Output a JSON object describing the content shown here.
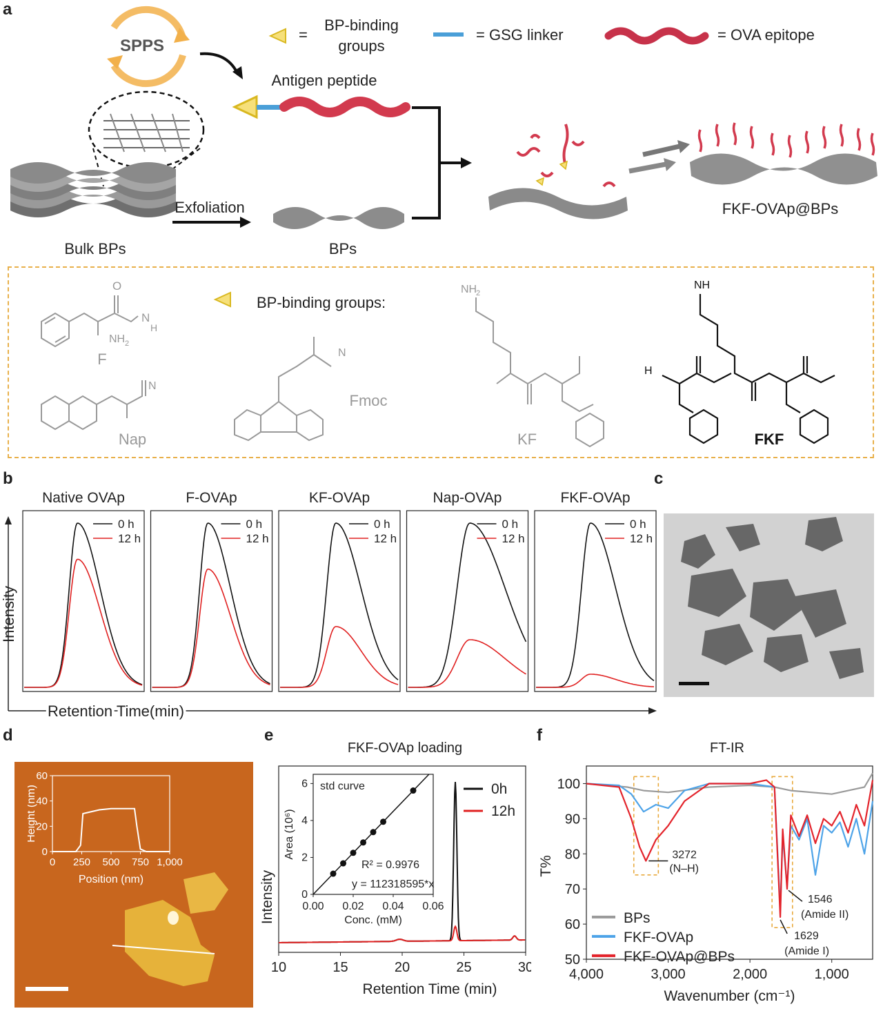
{
  "panel_letters": {
    "a": "a",
    "b": "b",
    "c": "c",
    "d": "d",
    "e": "e",
    "f": "f"
  },
  "panel_a": {
    "spps": "SPPS",
    "legend_eq": "=",
    "legend_bp_line1": "BP-binding",
    "legend_bp_line2": "groups",
    "legend_gsg": "= GSG linker",
    "legend_ova": "= OVA epitope",
    "antigen_peptide": "Antigen peptide",
    "exfoliation": "Exfoliation",
    "bulk_bps": "Bulk BPs",
    "bps": "BPs",
    "product": "FKF-OVAp@BPs",
    "colors": {
      "peptide": "#d23a4e",
      "linker": "#4a9fd8",
      "triangle": "#f2d43a",
      "sheet": "#8c8c8c",
      "box": "#e8b04a"
    }
  },
  "structures": {
    "heading": "BP-binding groups:",
    "F": "F",
    "Nap": "Nap",
    "Fmoc": "Fmoc",
    "KF": "KF",
    "FKF": "FKF",
    "atoms": {
      "O": "O",
      "NH2": "NH",
      "sub2": "2",
      "N": "N",
      "H": "H",
      "H2N": "H",
      "N_sub": "N"
    }
  },
  "panel_b": {
    "y_label": "Intensity",
    "x_label": "Retention Time(min)",
    "legend": [
      "0 h",
      "12 h"
    ],
    "colors": {
      "t0": "#111111",
      "t12": "#e02020"
    }
  },
  "panel_e": {
    "title": "FKF-OVAp loading"
  },
  "panel_f": {
    "title": "FT-IR"
  },
  "panel_d": {
    "scale_bar": "",
    "colors": {
      "bg": "#c8661e",
      "flake": "#f2c24a"
    }
  },
  "chart_data": [
    {
      "type": "line",
      "title": "Native OVAp",
      "series": [
        {
          "name": "0 h",
          "values": [
            1.0
          ]
        },
        {
          "name": "12 h",
          "values": [
            0.78
          ]
        }
      ],
      "peak_position": 0.45,
      "peak_width": 0.09
    },
    {
      "type": "line",
      "title": "F-OVAp",
      "series": [
        {
          "name": "0 h",
          "values": [
            1.0
          ]
        },
        {
          "name": "12 h",
          "values": [
            0.72
          ]
        }
      ],
      "peak_position": 0.47,
      "peak_width": 0.09
    },
    {
      "type": "line",
      "title": "KF-OVAp",
      "series": [
        {
          "name": "0 h",
          "values": [
            1.0
          ]
        },
        {
          "name": "12 h",
          "values": [
            0.37
          ]
        }
      ],
      "peak_position": 0.47,
      "peak_width": 0.1
    },
    {
      "type": "line",
      "title": "Nap-OVAp",
      "series": [
        {
          "name": "0 h",
          "values": [
            1.0
          ]
        },
        {
          "name": "12 h",
          "values": [
            0.29
          ]
        }
      ],
      "peak_position": 0.52,
      "peak_width": 0.14
    },
    {
      "type": "line",
      "title": "FKF-OVAp",
      "series": [
        {
          "name": "0 h",
          "values": [
            1.0
          ]
        },
        {
          "name": "12 h",
          "values": [
            0.08
          ]
        }
      ],
      "peak_position": 0.46,
      "peak_width": 0.1
    },
    {
      "type": "line",
      "title": "",
      "xlabel": "Position (nm)",
      "ylabel": "Height (nm)",
      "xlim": [
        0,
        1000
      ],
      "ylim": [
        0,
        60
      ],
      "x_ticks": [
        "0",
        "250",
        "500",
        "750",
        "1,000"
      ],
      "y_ticks": [
        "0",
        "20",
        "40",
        "60"
      ],
      "series": [
        {
          "name": "profile",
          "x": [
            0,
            200,
            240,
            260,
            400,
            500,
            600,
            700,
            720,
            750,
            800,
            1000
          ],
          "y": [
            0,
            0,
            5,
            30,
            33,
            34,
            34,
            34,
            20,
            2,
            0,
            0
          ]
        }
      ]
    },
    {
      "type": "line",
      "title": "FKF-OVAp loading",
      "xlabel": "Retention Time (min)",
      "ylabel": "Intensity",
      "xlim": [
        10,
        30
      ],
      "x_ticks": [
        "10",
        "15",
        "20",
        "25",
        "30"
      ],
      "series": [
        {
          "name": "0h",
          "peak_x": 24.3,
          "peak_height": 1.0
        },
        {
          "name": "12h",
          "peak_x": 24.3,
          "peak_height": 0.09
        }
      ],
      "inset": {
        "title": "std curve",
        "xlabel": "Conc. (mM)",
        "ylabel": "Area (10⁶)",
        "xlim": [
          0,
          0.06
        ],
        "ylim": [
          0,
          6.5
        ],
        "x_ticks": [
          "0.00",
          "0.02",
          "0.04",
          "0.06"
        ],
        "y_ticks": [
          "0",
          "2",
          "4",
          "6"
        ],
        "points": {
          "x": [
            0.01,
            0.015,
            0.02,
            0.025,
            0.03,
            0.035,
            0.05
          ],
          "y": [
            1.12,
            1.68,
            2.25,
            2.81,
            3.37,
            3.93,
            5.62
          ]
        },
        "r2": "R² = 0.9976",
        "equation": "y = 112318595*x"
      }
    },
    {
      "type": "line",
      "title": "FT-IR",
      "xlabel": "Wavenumber (cm⁻¹)",
      "ylabel": "T%",
      "xlim": [
        4000,
        500
      ],
      "ylim": [
        50,
        105
      ],
      "x_ticks": [
        "4,000",
        "3,000",
        "2,000",
        "1,000"
      ],
      "y_ticks": [
        "50",
        "60",
        "70",
        "80",
        "90",
        "100"
      ],
      "series": [
        {
          "name": "BPs",
          "x": [
            4000,
            3500,
            3300,
            3000,
            2500,
            2000,
            1700,
            1600,
            1500,
            1000,
            600,
            500
          ],
          "y": [
            100,
            99,
            98,
            97.5,
            99,
            99.5,
            99,
            98.5,
            98,
            97,
            99,
            103
          ]
        },
        {
          "name": "FKF-OVAp",
          "x": [
            4000,
            3600,
            3450,
            3300,
            3150,
            3000,
            2800,
            2500,
            2000,
            1700,
            1629,
            1600,
            1546,
            1500,
            1400,
            1300,
            1200,
            1100,
            1000,
            900,
            800,
            700,
            600,
            500
          ],
          "y": [
            100,
            99.5,
            97,
            92,
            94,
            93,
            98,
            100,
            100,
            99,
            64,
            85,
            71,
            88,
            84,
            90,
            74,
            88,
            86,
            89,
            82,
            90,
            80,
            95
          ]
        },
        {
          "name": "FKF-OVAp@BPs",
          "x": [
            4000,
            3600,
            3450,
            3350,
            3272,
            3150,
            3000,
            2800,
            2500,
            2000,
            1800,
            1700,
            1629,
            1600,
            1546,
            1500,
            1400,
            1300,
            1200,
            1100,
            1000,
            900,
            800,
            700,
            600,
            500
          ],
          "y": [
            100,
            99,
            90,
            82,
            78,
            84,
            88,
            95,
            100,
            100,
            101,
            99,
            62,
            87,
            70,
            91,
            85,
            91,
            83,
            90,
            88,
            92,
            86,
            94,
            88,
            101
          ]
        }
      ],
      "annotations": [
        {
          "label": "3272",
          "sub": "(N–H)"
        },
        {
          "label": "1546",
          "sub": "(Amide II)"
        },
        {
          "label": "1629",
          "sub": "(Amide I)"
        }
      ],
      "colors": {
        "BPs": "#9a9a9a",
        "FKF-OVAp": "#4da3e8",
        "FKF-OVAp@BPs": "#e3232b"
      }
    }
  ]
}
